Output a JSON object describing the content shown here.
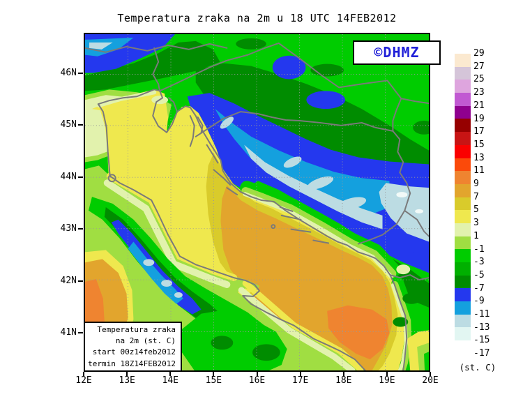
{
  "title": "Temperatura zraka na 2m u 18 UTC 14FEB2012",
  "badge": {
    "text": "©DHMZ",
    "color": "#2020D8"
  },
  "legend_box": {
    "lines": [
      "Temperatura zraka",
      "na 2m (st. C)",
      "start 00z14feb2012",
      "termin 18Z14FEB2012"
    ]
  },
  "axes": {
    "x_labels": [
      "12E",
      "13E",
      "14E",
      "15E",
      "16E",
      "17E",
      "18E",
      "19E",
      "20E"
    ],
    "y_labels": [
      "46N",
      "45N",
      "44N",
      "43N",
      "42N",
      "41N"
    ]
  },
  "colorbar": {
    "labels": [
      "29",
      "27",
      "25",
      "23",
      "21",
      "19",
      "17",
      "15",
      "13",
      "11",
      "9",
      "7",
      "5",
      "3",
      "1",
      "-1",
      "-3",
      "-5",
      "-7",
      "-9",
      "-11",
      "-13",
      "-15",
      "-17"
    ],
    "block_colors": [
      "#FBE9D0",
      "#D5C5D9",
      "#DEA5DE",
      "#C159D2",
      "#8F008F",
      "#960000",
      "#C81414",
      "#FA0000",
      "#FB4A0A",
      "#EF8430",
      "#E2A52D",
      "#D9CB2B",
      "#EFE84E",
      "#E2F2AD",
      "#A0DE42",
      "#00CC00",
      "#00B000",
      "#008C00",
      "#2438EE",
      "#14A0DE",
      "#BCDCE3",
      "#E2F6F2",
      "#FFFFFF"
    ],
    "unit": "(st. C)"
  },
  "map_colors": {
    "land_base_green": "#00CC00",
    "land_medium_green": "#00B000",
    "mountain_dark_green": "#008C00",
    "mountain_blue": "#2438EE",
    "mountain_light_blue": "#14A0DE",
    "mountain_pale_blue": "#BCDCE3",
    "mountain_palest": "#E2F6F2",
    "valley_pale_yellow": "#E2F2AD",
    "coast_yellow_green": "#A0DE42",
    "sea_yellow": "#EFE84E",
    "sea_dark_yellow": "#D9CB2B",
    "sea_gold": "#E2A52D",
    "sea_orange": "#EF8430",
    "coastline_gray": "#7A7A7A"
  }
}
